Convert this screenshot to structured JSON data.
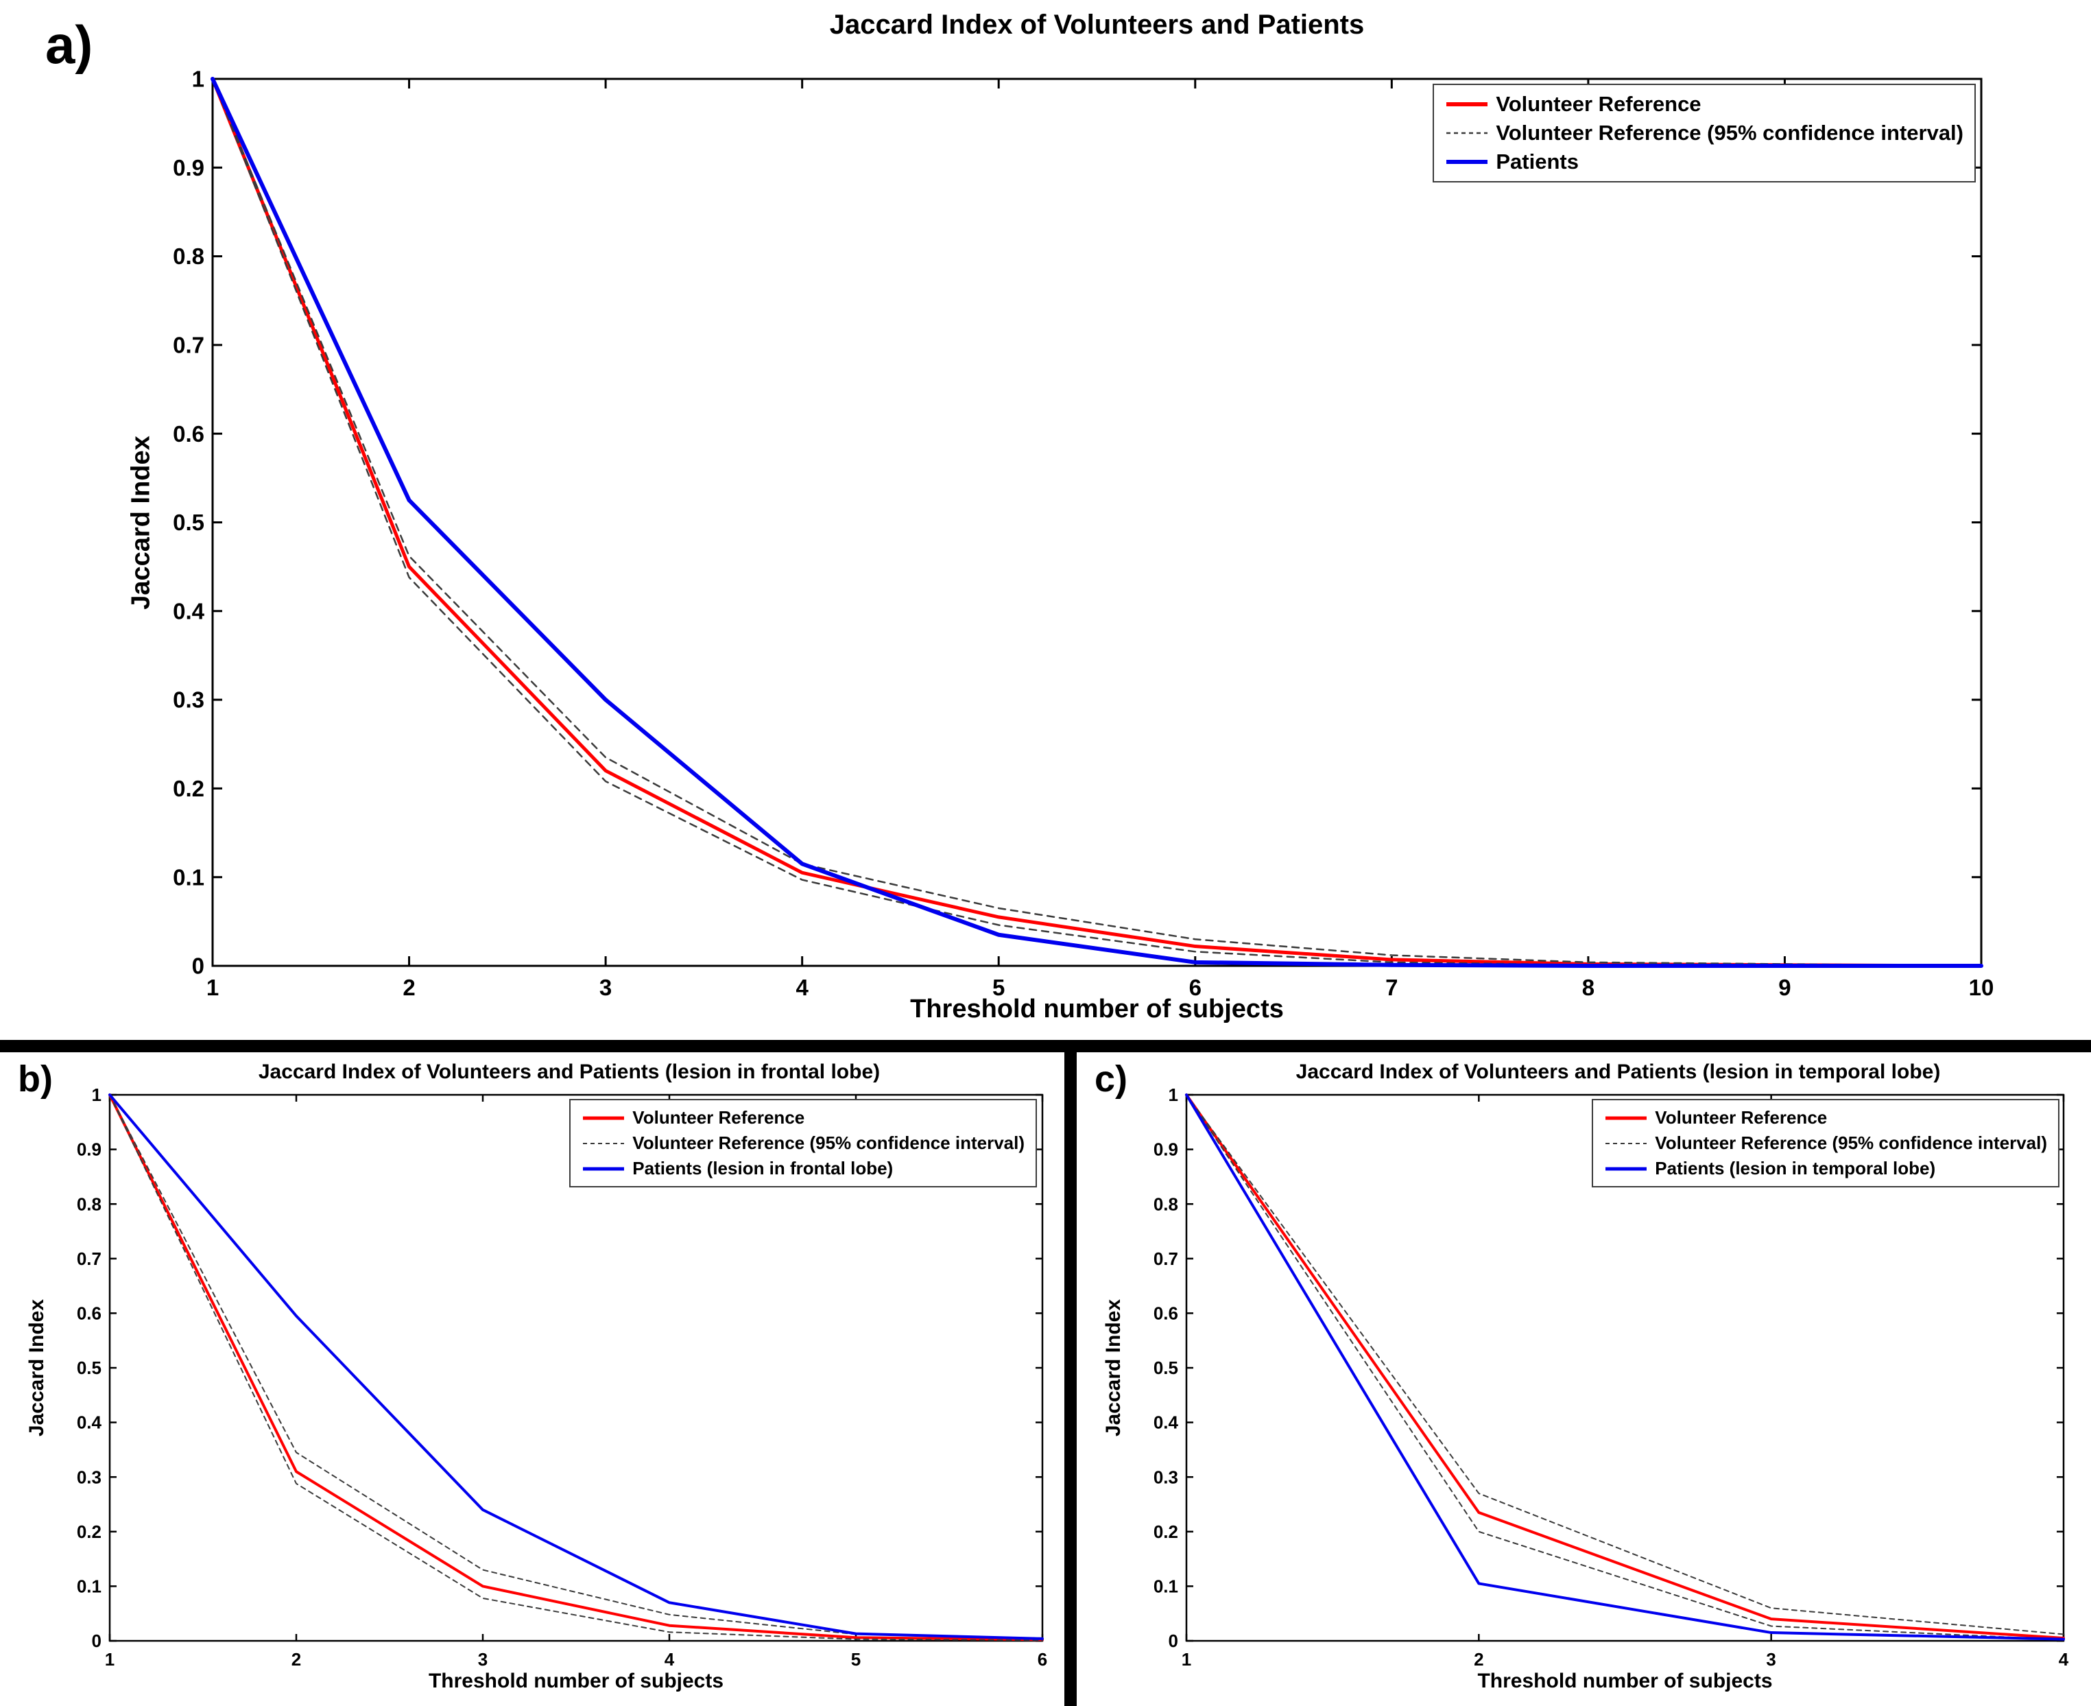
{
  "figure": {
    "panel_labels": [
      "a)",
      "b)",
      "c)"
    ]
  },
  "colors": {
    "volunteer_reference": "#ff0000",
    "confidence_interval": "#3a3a3a",
    "patients": "#0000ee",
    "divider": "#000000",
    "axis": "#000000"
  },
  "chart_data": [
    {
      "type": "line",
      "title": "Jaccard Index of Volunteers and Patients",
      "xlabel": "Threshold number of subjects",
      "ylabel": "Jaccard Index",
      "xlim": [
        1,
        10
      ],
      "ylim": [
        0,
        1
      ],
      "xticks": [
        1,
        2,
        3,
        4,
        5,
        6,
        7,
        8,
        9,
        10
      ],
      "yticks": [
        0,
        0.1,
        0.2,
        0.3,
        0.4,
        0.5,
        0.6,
        0.7,
        0.8,
        0.9,
        1
      ],
      "grid": false,
      "legend_position": "top-right",
      "x": [
        1,
        2,
        3,
        4,
        5,
        6,
        7,
        8,
        9,
        10
      ],
      "series": [
        {
          "name": "Volunteer Reference",
          "color": "#ff0000",
          "dash": false,
          "values": [
            1,
            0.45,
            0.22,
            0.105,
            0.055,
            0.022,
            0.007,
            0.002,
            0.001,
            0
          ]
        },
        {
          "name": "Volunteer Reference CI upper",
          "color": "#3a3a3a",
          "dash": true,
          "values": [
            1,
            0.462,
            0.235,
            0.115,
            0.065,
            0.03,
            0.012,
            0.004,
            0.002,
            0
          ]
        },
        {
          "name": "Volunteer Reference CI lower",
          "color": "#3a3a3a",
          "dash": true,
          "values": [
            1,
            0.438,
            0.208,
            0.097,
            0.046,
            0.016,
            0.004,
            0.001,
            0,
            0
          ]
        },
        {
          "name": "Patients",
          "color": "#0000ee",
          "dash": false,
          "values": [
            1,
            0.525,
            0.3,
            0.115,
            0.035,
            0.004,
            0.001,
            0,
            0,
            0
          ]
        }
      ],
      "legend": [
        {
          "label": "Volunteer Reference",
          "color": "#ff0000",
          "dash": false
        },
        {
          "label": "Volunteer Reference (95% confidence interval)",
          "color": "#3a3a3a",
          "dash": true
        },
        {
          "label": "Patients",
          "color": "#0000ee",
          "dash": false
        }
      ]
    },
    {
      "type": "line",
      "title": "Jaccard Index of Volunteers and Patients (lesion in frontal lobe)",
      "xlabel": "Threshold number of subjects",
      "ylabel": "Jaccard Index",
      "xlim": [
        1,
        6
      ],
      "ylim": [
        0,
        1
      ],
      "xticks": [
        1,
        2,
        3,
        4,
        5,
        6
      ],
      "yticks": [
        0,
        0.1,
        0.2,
        0.3,
        0.4,
        0.5,
        0.6,
        0.7,
        0.8,
        0.9,
        1
      ],
      "grid": false,
      "legend_position": "top-right",
      "x": [
        1,
        2,
        3,
        4,
        5,
        6
      ],
      "series": [
        {
          "name": "Volunteer Reference",
          "color": "#ff0000",
          "dash": false,
          "values": [
            1,
            0.31,
            0.1,
            0.028,
            0.006,
            0.002
          ]
        },
        {
          "name": "Volunteer Reference CI upper",
          "color": "#3a3a3a",
          "dash": true,
          "values": [
            1,
            0.345,
            0.13,
            0.048,
            0.012,
            0.005
          ]
        },
        {
          "name": "Volunteer Reference CI lower",
          "color": "#3a3a3a",
          "dash": true,
          "values": [
            1,
            0.288,
            0.078,
            0.016,
            0.003,
            0.001
          ]
        },
        {
          "name": "Patients (lesion in frontal lobe)",
          "color": "#0000ee",
          "dash": false,
          "values": [
            1,
            0.595,
            0.24,
            0.07,
            0.013,
            0.004
          ]
        }
      ],
      "legend": [
        {
          "label": "Volunteer Reference",
          "color": "#ff0000",
          "dash": false
        },
        {
          "label": "Volunteer Reference (95% confidence interval)",
          "color": "#3a3a3a",
          "dash": true
        },
        {
          "label": "Patients (lesion in frontal lobe)",
          "color": "#0000ee",
          "dash": false
        }
      ]
    },
    {
      "type": "line",
      "title": "Jaccard Index of Volunteers and Patients (lesion in temporal lobe)",
      "xlabel": "Threshold number of subjects",
      "ylabel": "Jaccard Index",
      "xlim": [
        1,
        4
      ],
      "ylim": [
        0,
        1
      ],
      "xticks": [
        1,
        2,
        3,
        4
      ],
      "yticks": [
        0,
        0.1,
        0.2,
        0.3,
        0.4,
        0.5,
        0.6,
        0.7,
        0.8,
        0.9,
        1
      ],
      "grid": false,
      "legend_position": "top-right",
      "x": [
        1,
        2,
        3,
        4
      ],
      "series": [
        {
          "name": "Volunteer Reference",
          "color": "#ff0000",
          "dash": false,
          "values": [
            1,
            0.235,
            0.04,
            0.005
          ]
        },
        {
          "name": "Volunteer Reference CI upper",
          "color": "#3a3a3a",
          "dash": true,
          "values": [
            1,
            0.27,
            0.06,
            0.012
          ]
        },
        {
          "name": "Volunteer Reference CI lower",
          "color": "#3a3a3a",
          "dash": true,
          "values": [
            1,
            0.2,
            0.027,
            0.002
          ]
        },
        {
          "name": "Patients (lesion in temporal lobe)",
          "color": "#0000ee",
          "dash": false,
          "values": [
            1,
            0.105,
            0.015,
            0.003
          ]
        }
      ],
      "legend": [
        {
          "label": "Volunteer Reference",
          "color": "#ff0000",
          "dash": false
        },
        {
          "label": "Volunteer Reference (95% confidence interval)",
          "color": "#3a3a3a",
          "dash": true
        },
        {
          "label": "Patients (lesion in temporal lobe)",
          "color": "#0000ee",
          "dash": false
        }
      ]
    }
  ]
}
